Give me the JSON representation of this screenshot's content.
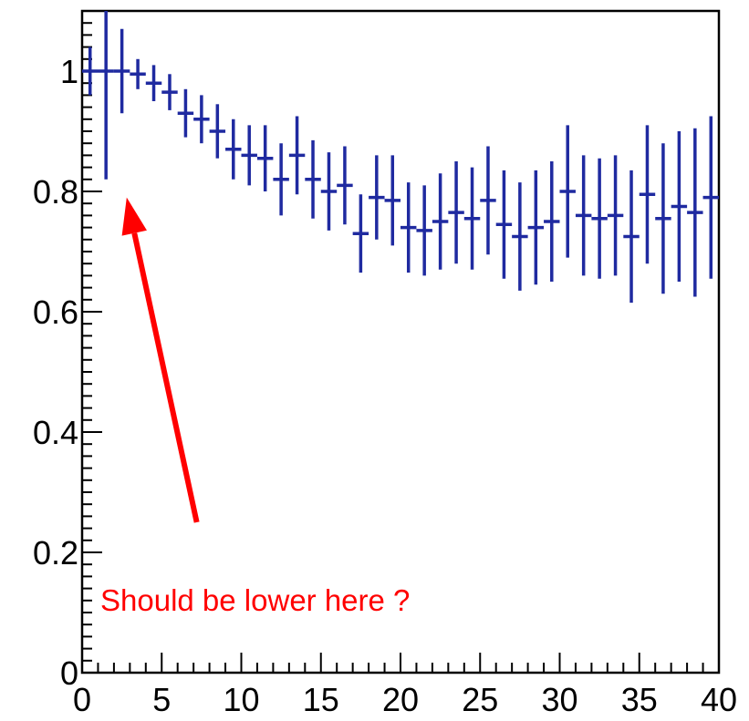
{
  "chart_data": {
    "type": "scatter",
    "title": "",
    "xlabel": "",
    "ylabel": "",
    "xlim": [
      0,
      40
    ],
    "ylim": [
      0,
      1.1
    ],
    "x_ticks": [
      "0",
      "5",
      "10",
      "15",
      "20",
      "25",
      "30",
      "35",
      "40"
    ],
    "y_ticks": [
      "0",
      "0.2",
      "0.4",
      "0.6",
      "0.8",
      "1"
    ],
    "grid": false,
    "series": [
      {
        "marker": "error-bars",
        "color": "#1f2aa0",
        "points": [
          {
            "x": 0.5,
            "y": 1.0,
            "err": 0.04
          },
          {
            "x": 1.5,
            "y": 1.0,
            "err": 0.18
          },
          {
            "x": 2.5,
            "y": 1.0,
            "err": 0.07
          },
          {
            "x": 3.5,
            "y": 0.995,
            "err": 0.025
          },
          {
            "x": 4.5,
            "y": 0.98,
            "err": 0.03
          },
          {
            "x": 5.5,
            "y": 0.965,
            "err": 0.03
          },
          {
            "x": 6.5,
            "y": 0.93,
            "err": 0.04
          },
          {
            "x": 7.5,
            "y": 0.92,
            "err": 0.04
          },
          {
            "x": 8.5,
            "y": 0.9,
            "err": 0.045
          },
          {
            "x": 9.5,
            "y": 0.87,
            "err": 0.05
          },
          {
            "x": 10.5,
            "y": 0.86,
            "err": 0.05
          },
          {
            "x": 11.5,
            "y": 0.855,
            "err": 0.055
          },
          {
            "x": 12.5,
            "y": 0.82,
            "err": 0.06
          },
          {
            "x": 13.5,
            "y": 0.86,
            "err": 0.065
          },
          {
            "x": 14.5,
            "y": 0.82,
            "err": 0.065
          },
          {
            "x": 15.5,
            "y": 0.8,
            "err": 0.065
          },
          {
            "x": 16.5,
            "y": 0.81,
            "err": 0.065
          },
          {
            "x": 17.5,
            "y": 0.73,
            "err": 0.065
          },
          {
            "x": 18.5,
            "y": 0.79,
            "err": 0.07
          },
          {
            "x": 19.5,
            "y": 0.785,
            "err": 0.075
          },
          {
            "x": 20.5,
            "y": 0.74,
            "err": 0.075
          },
          {
            "x": 21.5,
            "y": 0.735,
            "err": 0.075
          },
          {
            "x": 22.5,
            "y": 0.75,
            "err": 0.08
          },
          {
            "x": 23.5,
            "y": 0.765,
            "err": 0.085
          },
          {
            "x": 24.5,
            "y": 0.755,
            "err": 0.085
          },
          {
            "x": 25.5,
            "y": 0.785,
            "err": 0.09
          },
          {
            "x": 26.5,
            "y": 0.745,
            "err": 0.09
          },
          {
            "x": 27.5,
            "y": 0.725,
            "err": 0.09
          },
          {
            "x": 28.5,
            "y": 0.74,
            "err": 0.095
          },
          {
            "x": 29.5,
            "y": 0.75,
            "err": 0.1
          },
          {
            "x": 30.5,
            "y": 0.8,
            "err": 0.11
          },
          {
            "x": 31.5,
            "y": 0.76,
            "err": 0.1
          },
          {
            "x": 32.5,
            "y": 0.755,
            "err": 0.1
          },
          {
            "x": 33.5,
            "y": 0.76,
            "err": 0.1
          },
          {
            "x": 34.5,
            "y": 0.725,
            "err": 0.11
          },
          {
            "x": 35.5,
            "y": 0.795,
            "err": 0.115
          },
          {
            "x": 36.5,
            "y": 0.755,
            "err": 0.125
          },
          {
            "x": 37.5,
            "y": 0.775,
            "err": 0.125
          },
          {
            "x": 38.5,
            "y": 0.765,
            "err": 0.14
          },
          {
            "x": 39.5,
            "y": 0.79,
            "err": 0.135
          }
        ]
      }
    ],
    "annotations": [
      {
        "text": "Should be lower here ?",
        "color": "#ff0000",
        "arrow_from": {
          "x": 7.2,
          "y": 0.25
        },
        "arrow_to": {
          "x": 2.8,
          "y": 0.79
        }
      }
    ]
  }
}
